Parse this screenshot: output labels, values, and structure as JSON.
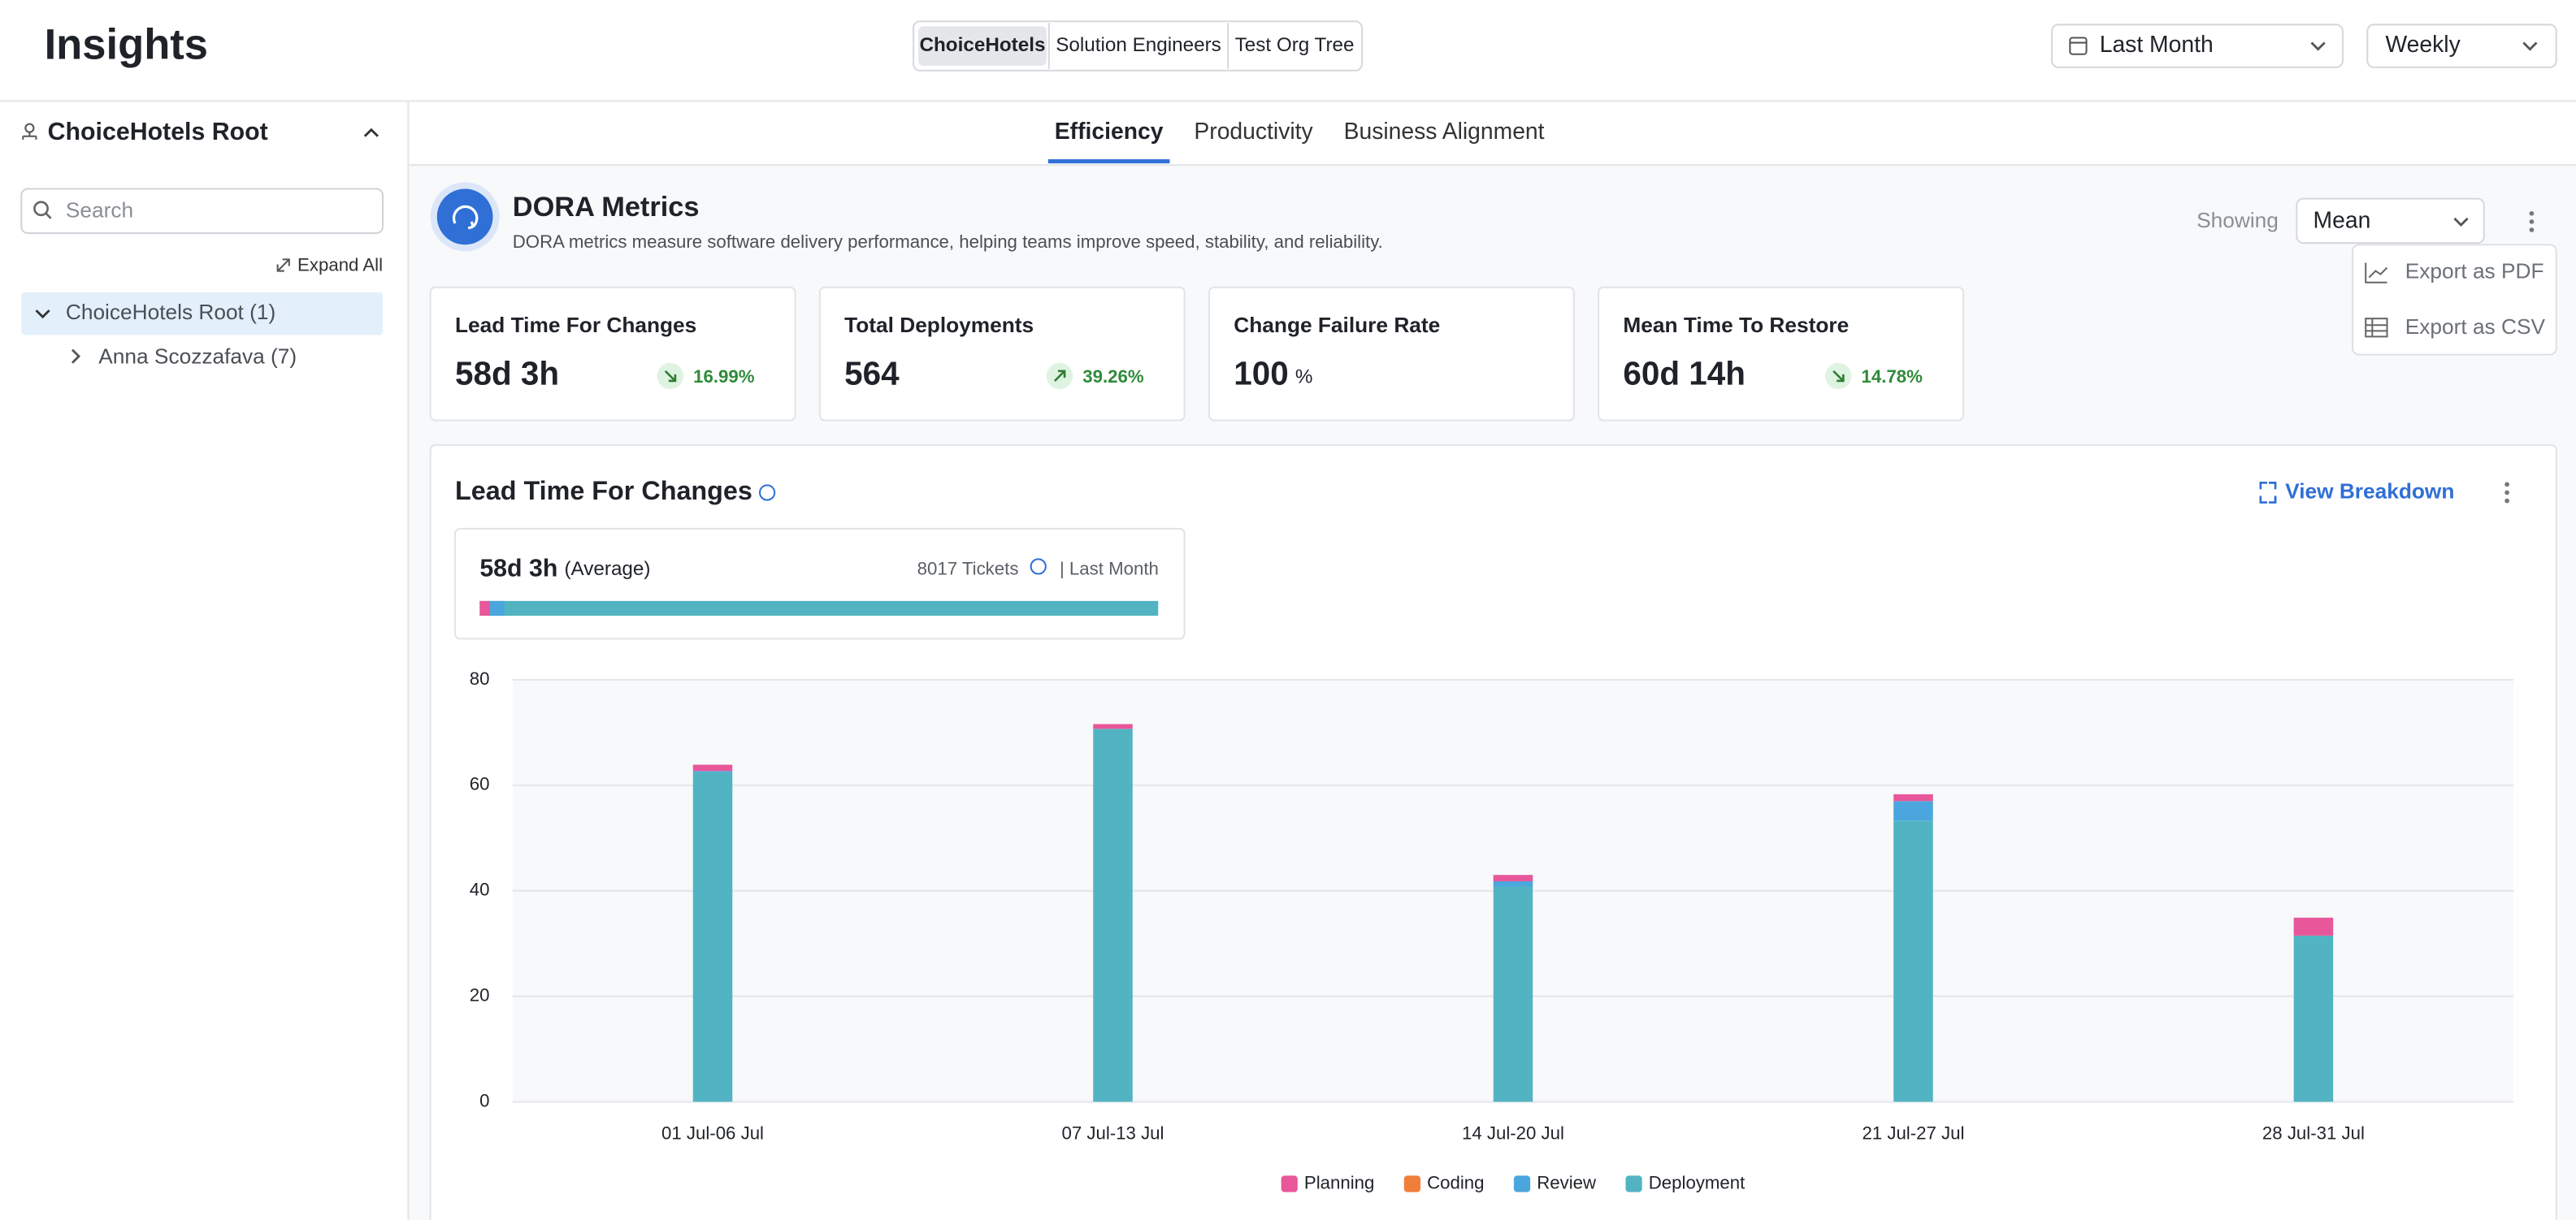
{
  "header": {
    "title": "Insights",
    "orgs": [
      "ChoiceHotels",
      "Solution Engineers",
      "Test Org Tree"
    ],
    "period": "Last Month",
    "interval": "Weekly"
  },
  "sidebar": {
    "root": "ChoiceHotels Root",
    "search_placeholder": "Search",
    "expand_all": "Expand All",
    "tree": [
      "ChoiceHotels Root (1)",
      "Anna Scozzafava (7)"
    ]
  },
  "tabs": [
    "Efficiency",
    "Productivity",
    "Business Alignment"
  ],
  "section": {
    "title": "DORA Metrics",
    "description": "DORA metrics measure software delivery performance, helping teams improve speed, stability, and reliability.",
    "showing_label": "Showing",
    "showing": "Mean",
    "menu": [
      "Export as PDF",
      "Export as CSV"
    ]
  },
  "kpis": [
    {
      "title": "Lead Time For Changes",
      "value": "58d 3h",
      "change": "16.99%",
      "trend": "down"
    },
    {
      "title": "Total Deployments",
      "value": "564",
      "change": "39.26%",
      "trend": "up"
    },
    {
      "title": "Change Failure Rate",
      "value": "100",
      "unit": "%"
    },
    {
      "title": "Mean Time To Restore",
      "value": "60d 14h",
      "change": "14.78%",
      "trend": "down"
    }
  ],
  "summary": {
    "value": "58d 3h",
    "qualifier": "(Average)",
    "tickets": "8017 Tickets",
    "period": "| Last Month"
  },
  "view_breakdown": "View Breakdown",
  "chart_data": {
    "type": "bar",
    "stacked": true,
    "title": "Lead Time For Changes",
    "categories": [
      "01 Jul-06 Jul",
      "07 Jul-13 Jul",
      "14 Jul-20 Jul",
      "21 Jul-27 Jul",
      "28 Jul-31 Jul"
    ],
    "series": [
      {
        "name": "Planning",
        "color": "#e8579a",
        "values": [
          1.2,
          0.9,
          1.2,
          1.3,
          3.4
        ]
      },
      {
        "name": "Coding",
        "color": "#f07d3a",
        "values": [
          0,
          0,
          0,
          0,
          0
        ]
      },
      {
        "name": "Review",
        "color": "#4aa6dd",
        "values": [
          0.2,
          0,
          1.0,
          3.7,
          0
        ]
      },
      {
        "name": "Deployment",
        "color": "#52b4c2",
        "values": [
          62.5,
          70.7,
          40.8,
          53.3,
          31.5
        ]
      }
    ],
    "ylim": [
      0,
      80
    ],
    "yticks": [
      0,
      20,
      40,
      60,
      80
    ],
    "grid": true,
    "legend": "bottom"
  }
}
